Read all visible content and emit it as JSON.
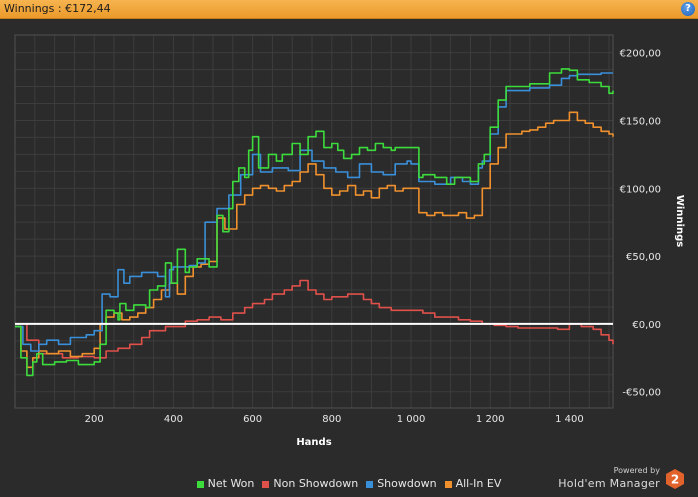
{
  "window": {
    "title": "Winnings : €172,44",
    "help_label": "?"
  },
  "branding": {
    "powered_by": "Powered by",
    "product": "Hold'em Manager",
    "logo_number": "2"
  },
  "colors": {
    "background": "#2b2b2b",
    "grid": "#3d3d3d",
    "zero_line": "#ffffff",
    "net_won": "#3ddc3d",
    "non_showdown": "#e0514b",
    "showdown": "#3a8fd9",
    "all_in_ev": "#f0912e"
  },
  "chart_data": {
    "type": "line",
    "xlabel": "Hands",
    "ylabel": "Winnings",
    "xlim": [
      0,
      1510
    ],
    "ylim": [
      -62,
      213
    ],
    "x_ticks": [
      200,
      400,
      600,
      800,
      1000,
      1200,
      1400
    ],
    "x_tick_labels": [
      "200",
      "400",
      "600",
      "800",
      "1 000",
      "1 200",
      "1 400"
    ],
    "y_ticks": [
      -50,
      0,
      50,
      100,
      150,
      200
    ],
    "y_tick_labels": [
      "-€50,00",
      "€0,00",
      "€50,00",
      "€100,00",
      "€150,00",
      "€200,00"
    ],
    "grid": true,
    "legend_position": "bottom",
    "series": [
      {
        "name": "Net Won",
        "color_key": "net_won",
        "x": [
          0,
          15,
          30,
          45,
          55,
          70,
          100,
          130,
          160,
          200,
          215,
          230,
          250,
          260,
          265,
          280,
          300,
          330,
          340,
          360,
          380,
          395,
          410,
          430,
          440,
          460,
          490,
          510,
          525,
          540,
          550,
          565,
          580,
          590,
          600,
          615,
          640,
          660,
          675,
          700,
          720,
          740,
          760,
          780,
          800,
          815,
          830,
          850,
          870,
          890,
          910,
          930,
          950,
          960,
          1000,
          1020,
          1030,
          1060,
          1090,
          1110,
          1150,
          1170,
          1185,
          1200,
          1220,
          1240,
          1260,
          1300,
          1350,
          1380,
          1400,
          1420,
          1450,
          1480,
          1500,
          1510
        ],
        "y": [
          -2,
          -25,
          -38,
          -28,
          -22,
          -30,
          -28,
          -27,
          -30,
          -28,
          -15,
          10,
          8,
          3,
          15,
          10,
          14,
          12,
          25,
          28,
          45,
          30,
          55,
          38,
          42,
          48,
          42,
          80,
          68,
          85,
          105,
          115,
          108,
          128,
          138,
          115,
          125,
          120,
          125,
          133,
          125,
          138,
          142,
          130,
          133,
          128,
          122,
          125,
          130,
          128,
          133,
          130,
          128,
          130,
          130,
          108,
          110,
          108,
          103,
          108,
          105,
          118,
          125,
          145,
          165,
          175,
          175,
          177,
          185,
          188,
          187,
          180,
          178,
          175,
          170,
          172
        ]
      },
      {
        "name": "Non Showdown",
        "color_key": "non_showdown",
        "x": [
          0,
          30,
          60,
          90,
          120,
          160,
          200,
          230,
          260,
          290,
          320,
          340,
          360,
          380,
          400,
          430,
          460,
          490,
          520,
          550,
          580,
          600,
          630,
          650,
          680,
          700,
          720,
          740,
          760,
          780,
          800,
          820,
          840,
          860,
          880,
          900,
          920,
          950,
          980,
          1000,
          1030,
          1060,
          1090,
          1120,
          1150,
          1180,
          1210,
          1240,
          1270,
          1300,
          1340,
          1370,
          1400,
          1430,
          1460,
          1480,
          1500,
          1510
        ],
        "y": [
          0,
          -12,
          -22,
          -22,
          -25,
          -24,
          -25,
          -20,
          -18,
          -15,
          -10,
          -5,
          -5,
          -2,
          -2,
          2,
          3,
          5,
          3,
          8,
          12,
          15,
          18,
          22,
          25,
          28,
          32,
          25,
          22,
          18,
          20,
          20,
          22,
          22,
          18,
          15,
          12,
          10,
          10,
          10,
          8,
          5,
          5,
          3,
          2,
          0,
          -1,
          -2,
          -3,
          -3,
          -3,
          -4,
          0,
          -2,
          -4,
          -8,
          -12,
          -15
        ]
      },
      {
        "name": "Showdown",
        "color_key": "showdown",
        "x": [
          0,
          20,
          40,
          60,
          80,
          110,
          140,
          180,
          200,
          220,
          240,
          260,
          275,
          290,
          320,
          360,
          380,
          390,
          400,
          420,
          440,
          460,
          480,
          510,
          540,
          570,
          600,
          620,
          650,
          690,
          720,
          750,
          780,
          810,
          840,
          870,
          900,
          930,
          960,
          990,
          1000,
          1020,
          1060,
          1100,
          1130,
          1150,
          1170,
          1180,
          1200,
          1220,
          1240,
          1260,
          1300,
          1350,
          1380,
          1400,
          1420,
          1450,
          1480,
          1510
        ],
        "y": [
          -2,
          -15,
          -20,
          -15,
          -12,
          -15,
          -10,
          -8,
          -5,
          22,
          20,
          40,
          30,
          35,
          38,
          35,
          20,
          40,
          42,
          42,
          43,
          45,
          75,
          85,
          95,
          110,
          125,
          112,
          115,
          113,
          128,
          120,
          115,
          112,
          108,
          118,
          112,
          110,
          118,
          120,
          118,
          105,
          103,
          108,
          105,
          103,
          115,
          120,
          140,
          160,
          172,
          172,
          174,
          176,
          181,
          183,
          184,
          184,
          185,
          185
        ]
      },
      {
        "name": "All-In EV",
        "color_key": "all_in_ev",
        "x": [
          0,
          15,
          30,
          45,
          60,
          80,
          110,
          140,
          170,
          200,
          215,
          230,
          250,
          270,
          290,
          310,
          330,
          350,
          370,
          390,
          410,
          430,
          450,
          470,
          490,
          510,
          530,
          560,
          580,
          600,
          620,
          640,
          660,
          680,
          700,
          720,
          740,
          760,
          780,
          800,
          820,
          840,
          860,
          880,
          900,
          920,
          940,
          960,
          980,
          1000,
          1020,
          1040,
          1060,
          1080,
          1100,
          1120,
          1140,
          1160,
          1180,
          1200,
          1220,
          1240,
          1260,
          1280,
          1300,
          1320,
          1340,
          1360,
          1380,
          1400,
          1420,
          1440,
          1460,
          1480,
          1500,
          1510
        ],
        "y": [
          -2,
          -20,
          -32,
          -25,
          -20,
          -22,
          -20,
          -24,
          -22,
          -18,
          0,
          5,
          8,
          3,
          5,
          8,
          12,
          18,
          25,
          30,
          22,
          35,
          42,
          44,
          46,
          78,
          70,
          88,
          95,
          100,
          102,
          100,
          98,
          102,
          105,
          112,
          118,
          110,
          100,
          95,
          98,
          102,
          95,
          98,
          93,
          100,
          102,
          98,
          100,
          100,
          82,
          80,
          82,
          80,
          80,
          82,
          78,
          80,
          100,
          118,
          130,
          140,
          140,
          142,
          143,
          145,
          148,
          150,
          150,
          156,
          150,
          148,
          145,
          142,
          140,
          138
        ]
      }
    ]
  }
}
